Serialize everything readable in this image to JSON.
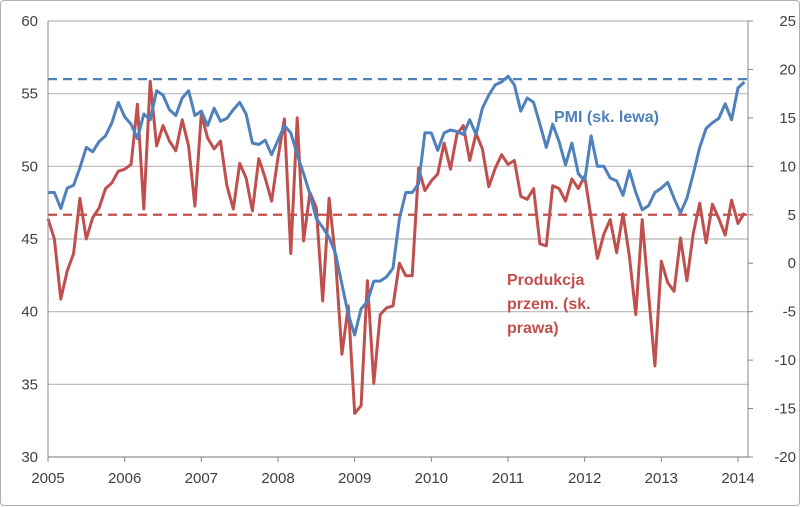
{
  "chart_data": {
    "type": "line",
    "title": "",
    "x_start": "2005-01",
    "x_end": "2014-02",
    "frequency": "monthly",
    "x_ticks": [
      "2005",
      "2006",
      "2007",
      "2008",
      "2009",
      "2010",
      "2011",
      "2012",
      "2013",
      "2014"
    ],
    "y_left": {
      "ylim": [
        30,
        60
      ],
      "ticks": [
        "30",
        "35",
        "40",
        "45",
        "50",
        "55",
        "60"
      ]
    },
    "y_right": {
      "ylim": [
        -20,
        25
      ],
      "ticks": [
        "-20",
        "-15",
        "-10",
        "-5",
        "0",
        "5",
        "10",
        "15",
        "20",
        "25"
      ]
    },
    "grid": true,
    "series": [
      {
        "name": "PMI (sk. lewa)",
        "axis": "left",
        "color": "#4f81bd",
        "values": [
          48.2,
          48.2,
          47.1,
          48.5,
          48.7,
          49.9,
          51.3,
          51.0,
          51.7,
          52.1,
          53.0,
          54.4,
          53.4,
          52.9,
          51.9,
          53.6,
          53.2,
          55.2,
          54.9,
          53.9,
          53.5,
          54.7,
          55.2,
          53.5,
          53.8,
          52.8,
          54.0,
          53.1,
          53.3,
          53.9,
          54.4,
          53.6,
          51.6,
          51.5,
          51.8,
          50.8,
          51.8,
          52.8,
          52.3,
          50.8,
          49.5,
          48.1,
          46.4,
          45.8,
          45.1,
          44.0,
          41.9,
          39.8,
          38.4,
          40.2,
          40.7,
          42.1,
          42.1,
          42.4,
          43.0,
          46.4,
          48.2,
          48.2,
          48.8,
          52.3,
          52.3,
          51.1,
          52.3,
          52.5,
          52.4,
          52.2,
          53.2,
          52.2,
          54.0,
          54.9,
          55.6,
          55.8,
          56.2,
          55.6,
          53.8,
          54.7,
          54.4,
          52.9,
          51.3,
          52.9,
          51.7,
          50.1,
          51.6,
          49.5,
          49.0,
          52.1,
          50.0,
          50.0,
          49.2,
          49.0,
          48.0,
          49.7,
          48.2,
          47.0,
          47.3,
          48.2,
          48.5,
          48.9,
          47.8,
          46.8,
          47.8,
          49.5,
          51.3,
          52.6,
          53.0,
          53.3,
          54.3,
          53.2,
          55.4,
          55.8
        ]
      },
      {
        "name": "Produkcja przem. (sk. prawa)",
        "label_lines": [
          "Produkcja",
          "przem. (sk.",
          "prawa)"
        ],
        "axis": "right",
        "color": "#c0504d",
        "values": [
          4.6,
          2.5,
          -3.7,
          -0.8,
          1.0,
          6.7,
          2.5,
          4.7,
          5.7,
          7.7,
          8.3,
          9.5,
          9.7,
          10.2,
          16.4,
          5.6,
          18.8,
          12.1,
          14.2,
          12.6,
          11.6,
          14.8,
          12.1,
          5.9,
          15.4,
          12.9,
          11.8,
          12.6,
          8.0,
          5.6,
          10.3,
          8.8,
          5.4,
          10.8,
          8.8,
          6.4,
          10.9,
          14.9,
          1.0,
          15.0,
          2.3,
          7.3,
          5.7,
          -3.9,
          6.7,
          0.5,
          -9.4,
          -4.4,
          -15.5,
          -14.7,
          -1.8,
          -12.4,
          -5.3,
          -4.6,
          -4.4,
          0.0,
          -1.3,
          -1.3,
          9.8,
          7.5,
          8.5,
          9.2,
          12.4,
          9.7,
          13.3,
          14.2,
          10.6,
          13.4,
          11.8,
          7.9,
          9.8,
          11.2,
          10.2,
          10.6,
          6.9,
          6.6,
          7.7,
          2.0,
          1.8,
          8.0,
          7.7,
          6.4,
          8.7,
          7.7,
          9.0,
          4.7,
          0.5,
          3.0,
          4.5,
          1.1,
          5.1,
          0.7,
          -5.3,
          4.5,
          -3.2,
          -10.6,
          0.2,
          -2.0,
          -2.9,
          2.6,
          -1.8,
          3.1,
          6.2,
          2.1,
          6.1,
          4.6,
          2.9,
          6.5,
          4.1,
          5.2
        ]
      }
    ],
    "reference_lines": [
      {
        "axis": "left",
        "value": 56,
        "color": "#4f81bd",
        "style": "dashed"
      },
      {
        "axis": "right",
        "value": 5,
        "color": "#c0504d",
        "style": "dashed"
      }
    ]
  }
}
